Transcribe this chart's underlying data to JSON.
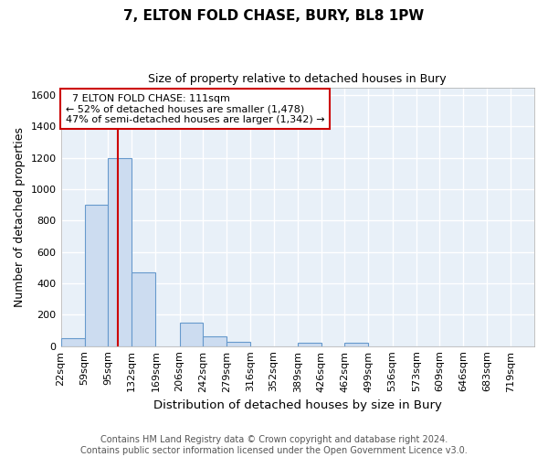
{
  "title": "7, ELTON FOLD CHASE, BURY, BL8 1PW",
  "subtitle": "Size of property relative to detached houses in Bury",
  "xlabel": "Distribution of detached houses by size in Bury",
  "ylabel": "Number of detached properties",
  "footer_line1": "Contains HM Land Registry data © Crown copyright and database right 2024.",
  "footer_line2": "Contains public sector information licensed under the Open Government Licence v3.0.",
  "annotation_line1": "7 ELTON FOLD CHASE: 111sqm",
  "annotation_line2": "← 52% of detached houses are smaller (1,478)",
  "annotation_line3": "47% of semi-detached houses are larger (1,342) →",
  "property_size": 111,
  "bar_edges": [
    22,
    59,
    95,
    132,
    169,
    206,
    242,
    279,
    316,
    352,
    389,
    426,
    462,
    499,
    536,
    573,
    609,
    646,
    683,
    719,
    756
  ],
  "bar_heights": [
    50,
    900,
    1200,
    470,
    0,
    150,
    60,
    30,
    0,
    0,
    20,
    0,
    20,
    0,
    0,
    0,
    0,
    0,
    0,
    0
  ],
  "bar_color": "#ccdcf0",
  "bar_edge_color": "#6699cc",
  "line_color": "#cc0000",
  "plot_bg_color": "#e8f0f8",
  "fig_bg_color": "#ffffff",
  "ylim": [
    0,
    1650
  ],
  "yticks": [
    0,
    200,
    400,
    600,
    800,
    1000,
    1200,
    1400,
    1600
  ],
  "title_fontsize": 11,
  "subtitle_fontsize": 9,
  "ylabel_fontsize": 9,
  "xlabel_fontsize": 9.5,
  "tick_fontsize": 8,
  "annotation_fontsize": 8,
  "footer_fontsize": 7
}
